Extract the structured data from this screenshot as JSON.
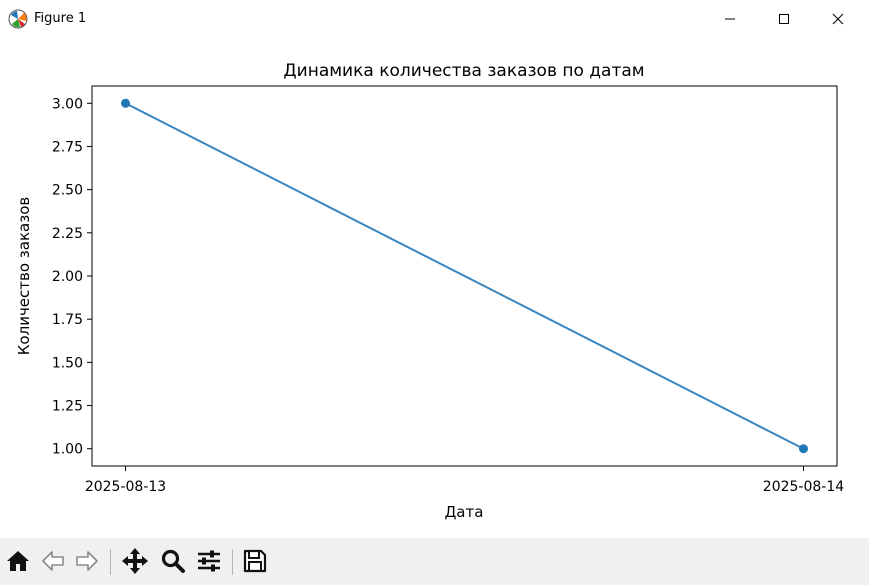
{
  "window": {
    "title": "Figure 1",
    "icons": {
      "app": "matplotlib-icon",
      "minimize": "minimize-icon",
      "maximize": "maximize-icon",
      "close": "close-icon"
    }
  },
  "toolbar": {
    "items": [
      {
        "name": "home-icon"
      },
      {
        "name": "back-arrow-icon"
      },
      {
        "name": "forward-arrow-icon"
      },
      {
        "name": "pan-icon"
      },
      {
        "name": "zoom-icon"
      },
      {
        "name": "configure-subplots-icon"
      },
      {
        "name": "save-icon"
      }
    ]
  },
  "chart_data": {
    "type": "line",
    "title": "Динамика количества заказов по датам",
    "xlabel": "Дата",
    "ylabel": "Количество заказов",
    "x": [
      "2025-08-13",
      "2025-08-14"
    ],
    "y": [
      3,
      1
    ],
    "xticks": [
      "2025-08-13",
      "2025-08-14"
    ],
    "yticks": [
      1.0,
      1.25,
      1.5,
      1.75,
      2.0,
      2.25,
      2.5,
      2.75,
      3.0
    ],
    "ytick_labels": [
      "1.00",
      "1.25",
      "1.50",
      "1.75",
      "2.00",
      "2.25",
      "2.50",
      "2.75",
      "3.00"
    ],
    "ylim": [
      0.9,
      3.1
    ],
    "marker": "circle",
    "grid": false,
    "colors": {
      "line": "#3a86c0",
      "marker": "#1f77b4",
      "axes": "#000000"
    }
  }
}
